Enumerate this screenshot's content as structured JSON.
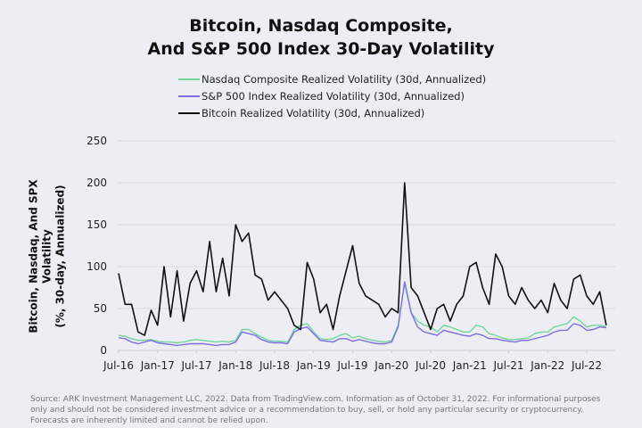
{
  "chart_data": {
    "type": "line",
    "title": "Bitcoin, Nasdaq Composite, And S&P 500 Index 30-Day Volatility",
    "title_lines": [
      "Bitcoin, Nasdaq Composite,",
      "And S&P 500 Index 30-Day Volatility"
    ],
    "ylabel_lines": [
      "Bitcoin, Nasdaq, And SPX Volatility",
      "(%, 30-day, Annualized)"
    ],
    "xlabel": "",
    "ylim": [
      0,
      250
    ],
    "yticks": [
      "0",
      "50",
      "100",
      "150",
      "200",
      "250"
    ],
    "xticks": [
      "Jul-16",
      "Jan-17",
      "Jul-17",
      "Jan-18",
      "Jul-18",
      "Jan-19",
      "Jul-19",
      "Jan-20",
      "Jul-20",
      "Jan-21",
      "Jul-21",
      "Jan-22",
      "Jul-22"
    ],
    "x_start": "Jul-16",
    "x_end": "Oct-22",
    "x_frequency": "monthly",
    "grid": "horizontal",
    "legend_position": "top",
    "series": [
      {
        "name": "Nasdaq Composite Realized Volatility (30d, Annualized)",
        "color": "#72d69c",
        "values": [
          18,
          17,
          14,
          12,
          12,
          13,
          11,
          10,
          10,
          9,
          10,
          12,
          13,
          12,
          11,
          10,
          11,
          10,
          12,
          25,
          25,
          20,
          16,
          12,
          11,
          11,
          10,
          25,
          30,
          32,
          22,
          14,
          13,
          14,
          18,
          20,
          15,
          17,
          14,
          12,
          11,
          10,
          12,
          30,
          80,
          45,
          35,
          30,
          28,
          22,
          30,
          28,
          25,
          22,
          22,
          30,
          28,
          20,
          18,
          15,
          13,
          13,
          14,
          15,
          20,
          22,
          22,
          28,
          30,
          32,
          40,
          35,
          28,
          30,
          30,
          28
        ]
      },
      {
        "name": "S&P 500 Index Realized Volatility (30d, Annualized)",
        "color": "#7d6fe2",
        "values": [
          15,
          14,
          10,
          8,
          10,
          12,
          9,
          8,
          7,
          6,
          7,
          8,
          8,
          8,
          7,
          6,
          7,
          7,
          10,
          22,
          20,
          18,
          13,
          10,
          9,
          9,
          8,
          22,
          26,
          28,
          20,
          12,
          11,
          10,
          14,
          14,
          11,
          13,
          11,
          9,
          8,
          8,
          10,
          28,
          82,
          45,
          28,
          22,
          20,
          18,
          24,
          22,
          20,
          18,
          17,
          20,
          18,
          14,
          14,
          12,
          11,
          10,
          12,
          12,
          14,
          16,
          18,
          22,
          24,
          24,
          32,
          30,
          24,
          25,
          28,
          27
        ]
      },
      {
        "name": "Bitcoin Realized Volatility (30d, Annualized)",
        "color": "#111111",
        "values": [
          92,
          55,
          55,
          22,
          18,
          48,
          30,
          100,
          40,
          95,
          35,
          80,
          95,
          70,
          130,
          70,
          110,
          65,
          150,
          130,
          140,
          90,
          85,
          60,
          70,
          60,
          50,
          30,
          25,
          105,
          85,
          45,
          55,
          25,
          65,
          95,
          125,
          80,
          65,
          60,
          55,
          40,
          50,
          45,
          200,
          75,
          65,
          45,
          25,
          50,
          55,
          35,
          55,
          65,
          100,
          105,
          75,
          55,
          115,
          100,
          65,
          55,
          75,
          60,
          50,
          60,
          45,
          80,
          60,
          50,
          85,
          90,
          65,
          55,
          70,
          30
        ]
      }
    ]
  },
  "source": "Source: ARK Investment Management LLC, 2022. Data from TradingView.com. Information as of October 31, 2022. For informational purposes only and should not be considered investment advice or a recommendation to buy, sell, or hold any particular security or cryptocurrency. Forecasts are inherently limited and cannot be relied upon."
}
